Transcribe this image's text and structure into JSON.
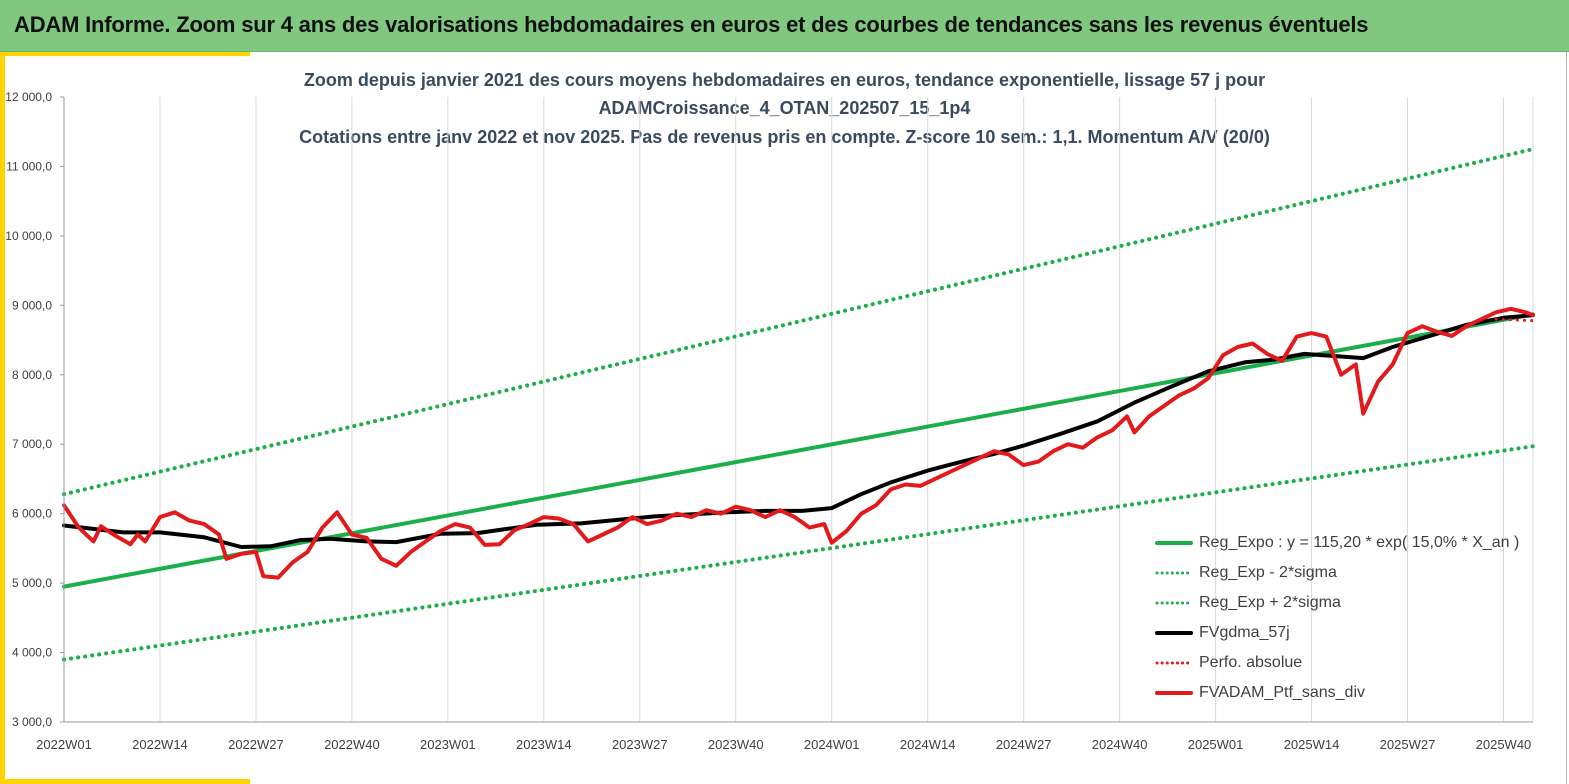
{
  "banner": {
    "title": "ADAM Informe. Zoom sur 4 ans des valorisations hebdomadaires en euros et des courbes de tendances sans les revenus éventuels"
  },
  "chart_data": {
    "type": "line",
    "title_lines": [
      "Zoom depuis janvier 2021 des cours moyens hebdomadaires  en euros, tendance exponentielle, lissage 57 j pour",
      "ADAMCroissance_4_OTAN_202507_15_1p4",
      "Cotations  entre janv 2022 et nov 2025. Pas de revenus pris en compte. Z-score 10 sem.: 1,1. Momentum A/V (20/0)"
    ],
    "ylim": [
      3000,
      12000
    ],
    "y_ticks": [
      "3 000,0",
      "4 000,0",
      "5 000,0",
      "6 000,0",
      "7 000,0",
      "8 000,0",
      "9 000,0",
      "10 000,0",
      "11 000,0",
      "12 000,0"
    ],
    "x_ticks": [
      "2022W01",
      "2022W14",
      "2022W27",
      "2022W40",
      "2023W01",
      "2023W14",
      "2023W27",
      "2023W40",
      "2024W01",
      "2024W14",
      "2024W27",
      "2024W40",
      "2025W01",
      "2025W14",
      "2025W27",
      "2025W40"
    ],
    "weeks_total": 200,
    "grid": "vertical",
    "legend_position": "bottom-right",
    "series": [
      {
        "name": "Reg_Expo : y = 115,20 * exp( 15,0% *  X_an )",
        "color": "#1aaf4b",
        "style": "solid",
        "points": [
          [
            0,
            4950
          ],
          [
            199,
            8870
          ]
        ]
      },
      {
        "name": "Reg_Exp - 2*sigma",
        "color": "#1aaf4b",
        "style": "dotted",
        "points": [
          [
            0,
            3900
          ],
          [
            199,
            6970
          ]
        ]
      },
      {
        "name": "Reg_Exp + 2*sigma",
        "color": "#1aaf4b",
        "style": "dotted",
        "points": [
          [
            0,
            6280
          ],
          [
            199,
            11250
          ]
        ]
      },
      {
        "name": "FVgdma_57j",
        "color": "#000000",
        "style": "solid",
        "points": [
          [
            0,
            5830
          ],
          [
            8,
            5730
          ],
          [
            13,
            5730
          ],
          [
            19,
            5660
          ],
          [
            24,
            5520
          ],
          [
            28,
            5530
          ],
          [
            32,
            5620
          ],
          [
            36,
            5640
          ],
          [
            41,
            5600
          ],
          [
            45,
            5590
          ],
          [
            51,
            5710
          ],
          [
            56,
            5720
          ],
          [
            60,
            5780
          ],
          [
            64,
            5840
          ],
          [
            70,
            5860
          ],
          [
            80,
            5960
          ],
          [
            90,
            6020
          ],
          [
            95,
            6040
          ],
          [
            100,
            6040
          ],
          [
            104,
            6080
          ],
          [
            108,
            6280
          ],
          [
            112,
            6450
          ],
          [
            117,
            6620
          ],
          [
            122,
            6760
          ],
          [
            126,
            6860
          ],
          [
            130,
            6980
          ],
          [
            135,
            7150
          ],
          [
            140,
            7330
          ],
          [
            145,
            7600
          ],
          [
            150,
            7830
          ],
          [
            155,
            8050
          ],
          [
            160,
            8180
          ],
          [
            164,
            8220
          ],
          [
            168,
            8300
          ],
          [
            172,
            8270
          ],
          [
            176,
            8240
          ],
          [
            180,
            8400
          ],
          [
            185,
            8560
          ],
          [
            190,
            8720
          ],
          [
            195,
            8820
          ],
          [
            199,
            8860
          ]
        ]
      },
      {
        "name": "Perfo. absolue",
        "color": "#e31a1c",
        "style": "dotted",
        "points": [
          [
            194,
            8800
          ],
          [
            199,
            8780
          ]
        ]
      },
      {
        "name": "FVADAM_Ptf_sans_div",
        "color": "#e31a1c",
        "style": "solid",
        "points": [
          [
            0,
            6120
          ],
          [
            2,
            5800
          ],
          [
            4,
            5600
          ],
          [
            5,
            5820
          ],
          [
            7,
            5680
          ],
          [
            9,
            5560
          ],
          [
            10,
            5700
          ],
          [
            11,
            5600
          ],
          [
            13,
            5950
          ],
          [
            15,
            6020
          ],
          [
            17,
            5900
          ],
          [
            19,
            5850
          ],
          [
            21,
            5700
          ],
          [
            22,
            5350
          ],
          [
            24,
            5420
          ],
          [
            26,
            5450
          ],
          [
            27,
            5100
          ],
          [
            29,
            5080
          ],
          [
            31,
            5300
          ],
          [
            33,
            5450
          ],
          [
            35,
            5800
          ],
          [
            37,
            6020
          ],
          [
            39,
            5700
          ],
          [
            41,
            5650
          ],
          [
            43,
            5350
          ],
          [
            45,
            5250
          ],
          [
            47,
            5450
          ],
          [
            49,
            5600
          ],
          [
            51,
            5750
          ],
          [
            53,
            5850
          ],
          [
            55,
            5800
          ],
          [
            57,
            5550
          ],
          [
            59,
            5560
          ],
          [
            61,
            5760
          ],
          [
            63,
            5850
          ],
          [
            65,
            5950
          ],
          [
            67,
            5930
          ],
          [
            69,
            5850
          ],
          [
            71,
            5600
          ],
          [
            73,
            5700
          ],
          [
            75,
            5800
          ],
          [
            77,
            5950
          ],
          [
            79,
            5850
          ],
          [
            81,
            5900
          ],
          [
            83,
            6000
          ],
          [
            85,
            5950
          ],
          [
            87,
            6050
          ],
          [
            89,
            6000
          ],
          [
            91,
            6100
          ],
          [
            93,
            6050
          ],
          [
            95,
            5950
          ],
          [
            97,
            6050
          ],
          [
            99,
            5950
          ],
          [
            101,
            5800
          ],
          [
            103,
            5850
          ],
          [
            104,
            5580
          ],
          [
            106,
            5750
          ],
          [
            108,
            6000
          ],
          [
            110,
            6120
          ],
          [
            112,
            6350
          ],
          [
            114,
            6420
          ],
          [
            116,
            6400
          ],
          [
            118,
            6500
          ],
          [
            120,
            6600
          ],
          [
            122,
            6700
          ],
          [
            124,
            6800
          ],
          [
            126,
            6900
          ],
          [
            128,
            6850
          ],
          [
            130,
            6700
          ],
          [
            132,
            6750
          ],
          [
            134,
            6900
          ],
          [
            136,
            7000
          ],
          [
            138,
            6950
          ],
          [
            140,
            7100
          ],
          [
            142,
            7200
          ],
          [
            144,
            7400
          ],
          [
            145,
            7170
          ],
          [
            147,
            7400
          ],
          [
            149,
            7550
          ],
          [
            151,
            7700
          ],
          [
            153,
            7800
          ],
          [
            155,
            7950
          ],
          [
            157,
            8280
          ],
          [
            159,
            8400
          ],
          [
            161,
            8450
          ],
          [
            163,
            8300
          ],
          [
            165,
            8200
          ],
          [
            167,
            8550
          ],
          [
            169,
            8600
          ],
          [
            171,
            8550
          ],
          [
            173,
            8000
          ],
          [
            175,
            8150
          ],
          [
            176,
            7440
          ],
          [
            178,
            7900
          ],
          [
            180,
            8150
          ],
          [
            182,
            8600
          ],
          [
            184,
            8700
          ],
          [
            186,
            8620
          ],
          [
            188,
            8560
          ],
          [
            190,
            8700
          ],
          [
            192,
            8800
          ],
          [
            194,
            8900
          ],
          [
            196,
            8950
          ],
          [
            198,
            8900
          ],
          [
            199,
            8860
          ]
        ]
      }
    ]
  }
}
